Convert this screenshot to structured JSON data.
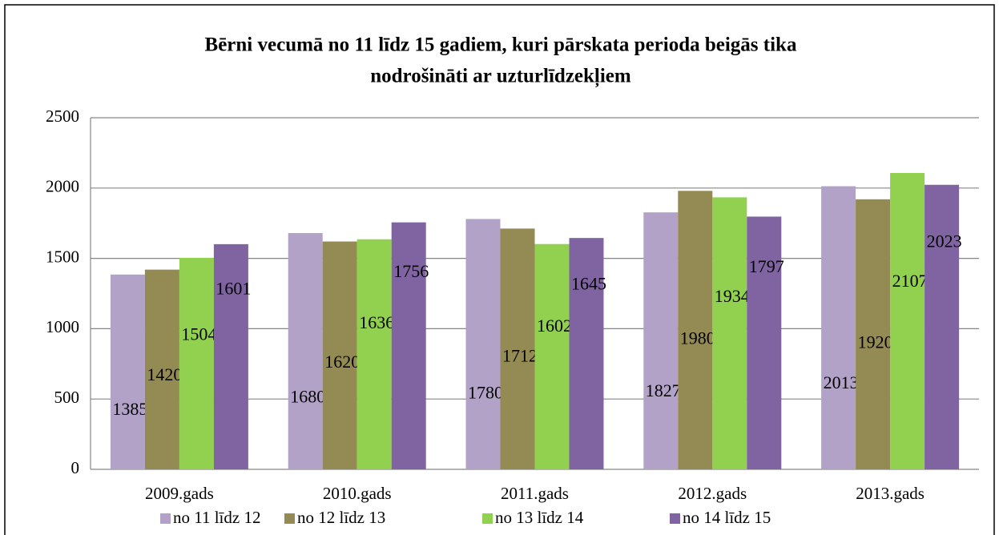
{
  "chart_data": {
    "type": "bar",
    "title": [
      "Bērni vecumā no 11 līdz 15 gadiem, kuri pārskata perioda beigās tika",
      "nodrošināti ar uzturlīdzekļiem"
    ],
    "categories": [
      "2009.gads",
      "2010.gads",
      "2011.gads",
      "2012.gads",
      "2013.gads"
    ],
    "series": [
      {
        "name": "no 11 līdz 12",
        "color": "#b3a2c7",
        "values": [
          1385,
          1680,
          1780,
          1827,
          2013
        ]
      },
      {
        "name": "no 12 līdz 13",
        "color": "#948a54",
        "values": [
          1420,
          1620,
          1712,
          1980,
          1920
        ]
      },
      {
        "name": "no 13 līdz 14",
        "color": "#92d050",
        "values": [
          1504,
          1636,
          1602,
          1934,
          2107
        ]
      },
      {
        "name": "no 14 līdz 15",
        "color": "#8064a2",
        "values": [
          1601,
          1756,
          1645,
          1797,
          2023
        ]
      }
    ],
    "ylim": [
      0,
      2500
    ],
    "yticks": [
      0,
      500,
      1000,
      1500,
      2000,
      2500
    ],
    "grid": true,
    "legend": "bottom"
  }
}
